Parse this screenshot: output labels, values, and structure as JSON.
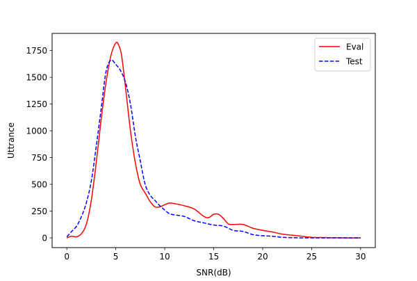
{
  "chart_data": {
    "type": "line",
    "title": "",
    "xlabel": "SNR(dB)",
    "ylabel": "Uttrance",
    "xlim": [
      -1.5,
      31.5
    ],
    "ylim": [
      -91,
      1910
    ],
    "xticks": [
      0,
      5,
      10,
      15,
      20,
      25,
      30
    ],
    "yticks": [
      0,
      250,
      500,
      750,
      1000,
      1250,
      1500,
      1750
    ],
    "grid": false,
    "legend": {
      "placement": "top-right",
      "entries": [
        "Eval",
        "Test"
      ]
    },
    "series": [
      {
        "name": "Eval",
        "color": "#ff0000",
        "dash": "solid",
        "x": [
          0,
          0.5,
          1,
          1.5,
          2,
          2.5,
          3,
          3.5,
          4,
          4.5,
          5,
          5.3,
          5.6,
          6,
          6.5,
          7,
          7.5,
          8,
          8.5,
          9,
          9.5,
          10,
          10.5,
          11,
          12,
          13,
          14,
          14.5,
          15,
          15.5,
          16,
          16.5,
          17,
          18,
          19,
          20,
          21,
          22,
          23,
          24,
          25,
          26,
          27,
          28,
          29,
          30
        ],
        "y": [
          0,
          15,
          10,
          40,
          130,
          350,
          700,
          1100,
          1450,
          1700,
          1820,
          1800,
          1700,
          1400,
          1000,
          700,
          500,
          420,
          340,
          290,
          290,
          310,
          325,
          320,
          300,
          270,
          200,
          190,
          220,
          220,
          180,
          130,
          125,
          125,
          90,
          70,
          55,
          35,
          25,
          15,
          5,
          3,
          2,
          1,
          0,
          0
        ]
      },
      {
        "name": "Test",
        "color": "#0000ff",
        "dash": "dashed",
        "x": [
          0,
          0.5,
          1,
          1.5,
          2,
          2.5,
          3,
          3.5,
          4,
          4.5,
          5,
          5.5,
          6,
          6.5,
          7,
          7.5,
          8,
          8.5,
          9,
          9.5,
          10,
          10.5,
          11,
          12,
          13,
          14,
          15,
          16,
          17,
          18,
          19,
          20,
          21,
          22,
          23,
          24,
          25,
          26,
          27,
          28,
          29,
          30
        ],
        "y": [
          10,
          60,
          110,
          200,
          330,
          530,
          850,
          1200,
          1550,
          1660,
          1620,
          1560,
          1450,
          1250,
          950,
          720,
          500,
          400,
          350,
          300,
          260,
          225,
          215,
          200,
          160,
          140,
          120,
          110,
          70,
          60,
          30,
          20,
          15,
          5,
          2,
          0,
          0,
          0,
          0,
          0,
          0,
          0
        ]
      }
    ]
  }
}
